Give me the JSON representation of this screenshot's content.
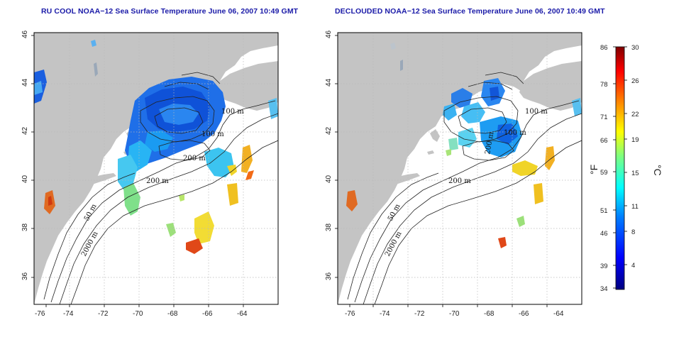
{
  "maps": [
    {
      "title": "RU COOL NOAA−12 Sea Surface Temperature June 06, 2007 10:49 GMT",
      "lon_ticks": [
        "-76",
        "-74",
        "-72",
        "-70",
        "-68",
        "-66",
        "-64"
      ],
      "lat_ticks": [
        "46",
        "44",
        "42",
        "40",
        "38",
        "36"
      ],
      "contour_labels": [
        "100 m",
        "100 m",
        "200 m",
        "50 m",
        "2000 m",
        "200 m"
      ]
    },
    {
      "title": "DECLOUDED NOAA−12 Sea Surface Temperature June 06, 2007 10:49 GMT",
      "lon_ticks": [
        "-76",
        "-74",
        "-72",
        "-70",
        "-68",
        "-66",
        "-64"
      ],
      "lat_ticks": [
        "46",
        "44",
        "42",
        "40",
        "38",
        "36"
      ],
      "contour_labels": [
        "100 m",
        "100 m",
        "200 m",
        "50 m",
        "2000 m",
        "200 m"
      ]
    }
  ],
  "colorbar": {
    "fahrenheit_label": "°F",
    "celsius_label": "°C",
    "fahrenheit_ticks": [
      "86",
      "78",
      "71",
      "66",
      "59",
      "51",
      "46",
      "39",
      "34"
    ],
    "celsius_ticks": [
      "30",
      "26",
      "22",
      "19",
      "15",
      "11",
      "8",
      "4"
    ],
    "celsius_range": [
      1,
      30
    ],
    "colors": [
      "#00007f",
      "#0000ff",
      "#007fff",
      "#00ffff",
      "#7fff7f",
      "#ffff00",
      "#ff7f00",
      "#ff0000",
      "#7f0000"
    ]
  },
  "colors": {
    "land": "#c4c4c4",
    "ocean": "#ffffff",
    "grid": "#bbbbbb",
    "title": "#1a1aa8"
  }
}
